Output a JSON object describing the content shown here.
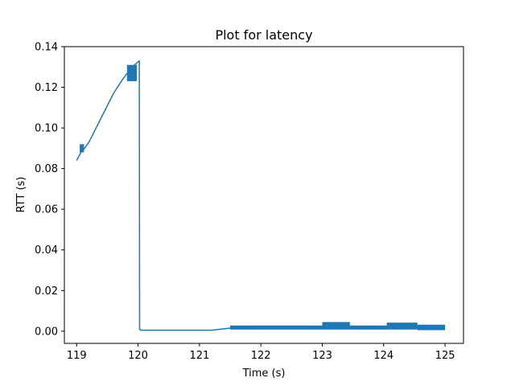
{
  "chart_data": {
    "type": "line",
    "title": "Plot for latency",
    "xlabel": "Time (s)",
    "ylabel": "RTT (s)",
    "xlim": [
      118.8,
      125.3
    ],
    "ylim": [
      -0.006,
      0.14
    ],
    "xticks": [
      "119",
      "120",
      "121",
      "122",
      "123",
      "124",
      "125"
    ],
    "yticks": [
      "0.00",
      "0.02",
      "0.04",
      "0.06",
      "0.08",
      "0.10",
      "0.12",
      "0.14"
    ],
    "grid": false,
    "colors": {
      "series": "#1f77b4"
    },
    "series": [
      {
        "name": "",
        "x": [
          119.0,
          119.07,
          119.13,
          119.2,
          119.3,
          119.45,
          119.6,
          119.75,
          119.9,
          120.02,
          120.025,
          120.04,
          120.3,
          120.6,
          120.9,
          121.2,
          121.5,
          121.8,
          122.1,
          122.4,
          122.7,
          123.0,
          123.3,
          123.6,
          123.9,
          124.2,
          124.5,
          124.8,
          125.0
        ],
        "y": [
          0.084,
          0.088,
          0.09,
          0.093,
          0.099,
          0.108,
          0.117,
          0.124,
          0.13,
          0.133,
          0.001,
          0.0005,
          0.0005,
          0.0005,
          0.0005,
          0.0005,
          0.0015,
          0.0018,
          0.0018,
          0.0018,
          0.0018,
          0.002,
          0.0022,
          0.0018,
          0.0017,
          0.0022,
          0.002,
          0.0018,
          0.0015
        ]
      }
    ],
    "bands": [
      {
        "x0": 119.05,
        "x1": 119.12,
        "ylo": 0.088,
        "yhi": 0.092
      },
      {
        "x0": 119.82,
        "x1": 119.98,
        "ylo": 0.123,
        "yhi": 0.131
      },
      {
        "x0": 121.5,
        "x1": 123.0,
        "ylo": 0.0008,
        "yhi": 0.0028
      },
      {
        "x0": 123.0,
        "x1": 123.45,
        "ylo": 0.0008,
        "yhi": 0.0045
      },
      {
        "x0": 123.45,
        "x1": 124.05,
        "ylo": 0.0008,
        "yhi": 0.0028
      },
      {
        "x0": 124.05,
        "x1": 124.55,
        "ylo": 0.0008,
        "yhi": 0.0042
      },
      {
        "x0": 124.55,
        "x1": 125.0,
        "ylo": 0.0005,
        "yhi": 0.0032
      }
    ]
  }
}
